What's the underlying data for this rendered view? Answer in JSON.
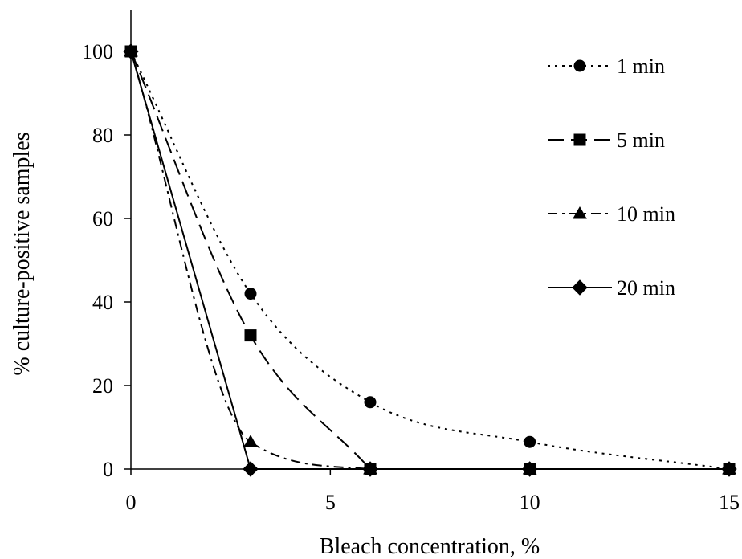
{
  "chart_data": {
    "type": "scatter",
    "title": "",
    "xlabel": "Bleach concentration, %",
    "ylabel": "% culture-positive samples",
    "xlim": [
      0,
      15
    ],
    "ylim": [
      0,
      100
    ],
    "xticks": [
      0,
      5,
      10,
      15
    ],
    "yticks": [
      0,
      20,
      40,
      60,
      80,
      100
    ],
    "grid": false,
    "legend_position": "top-right",
    "smoothed_lines": true,
    "series": [
      {
        "name": "1 min",
        "marker": "circle",
        "line_style": "dotted",
        "color": "#000000",
        "points": [
          {
            "x": 0,
            "y": 100
          },
          {
            "x": 3,
            "y": 42
          },
          {
            "x": 6,
            "y": 16
          },
          {
            "x": 10,
            "y": 6.5
          },
          {
            "x": 15,
            "y": 0
          }
        ]
      },
      {
        "name": "5 min",
        "marker": "square",
        "line_style": "long-dash",
        "color": "#000000",
        "points": [
          {
            "x": 0,
            "y": 100
          },
          {
            "x": 3,
            "y": 32
          },
          {
            "x": 6,
            "y": 0
          },
          {
            "x": 10,
            "y": 0
          },
          {
            "x": 15,
            "y": 0
          }
        ]
      },
      {
        "name": "10 min",
        "marker": "triangle",
        "line_style": "dash-dot",
        "color": "#000000",
        "points": [
          {
            "x": 0,
            "y": 100
          },
          {
            "x": 3,
            "y": 6.5
          },
          {
            "x": 6,
            "y": 0
          },
          {
            "x": 10,
            "y": 0
          },
          {
            "x": 15,
            "y": 0
          }
        ]
      },
      {
        "name": "20 min",
        "marker": "diamond",
        "line_style": "solid",
        "color": "#000000",
        "points": [
          {
            "x": 0,
            "y": 100
          },
          {
            "x": 3,
            "y": 0
          },
          {
            "x": 6,
            "y": 0
          },
          {
            "x": 10,
            "y": 0
          },
          {
            "x": 15,
            "y": 0
          }
        ]
      }
    ]
  }
}
